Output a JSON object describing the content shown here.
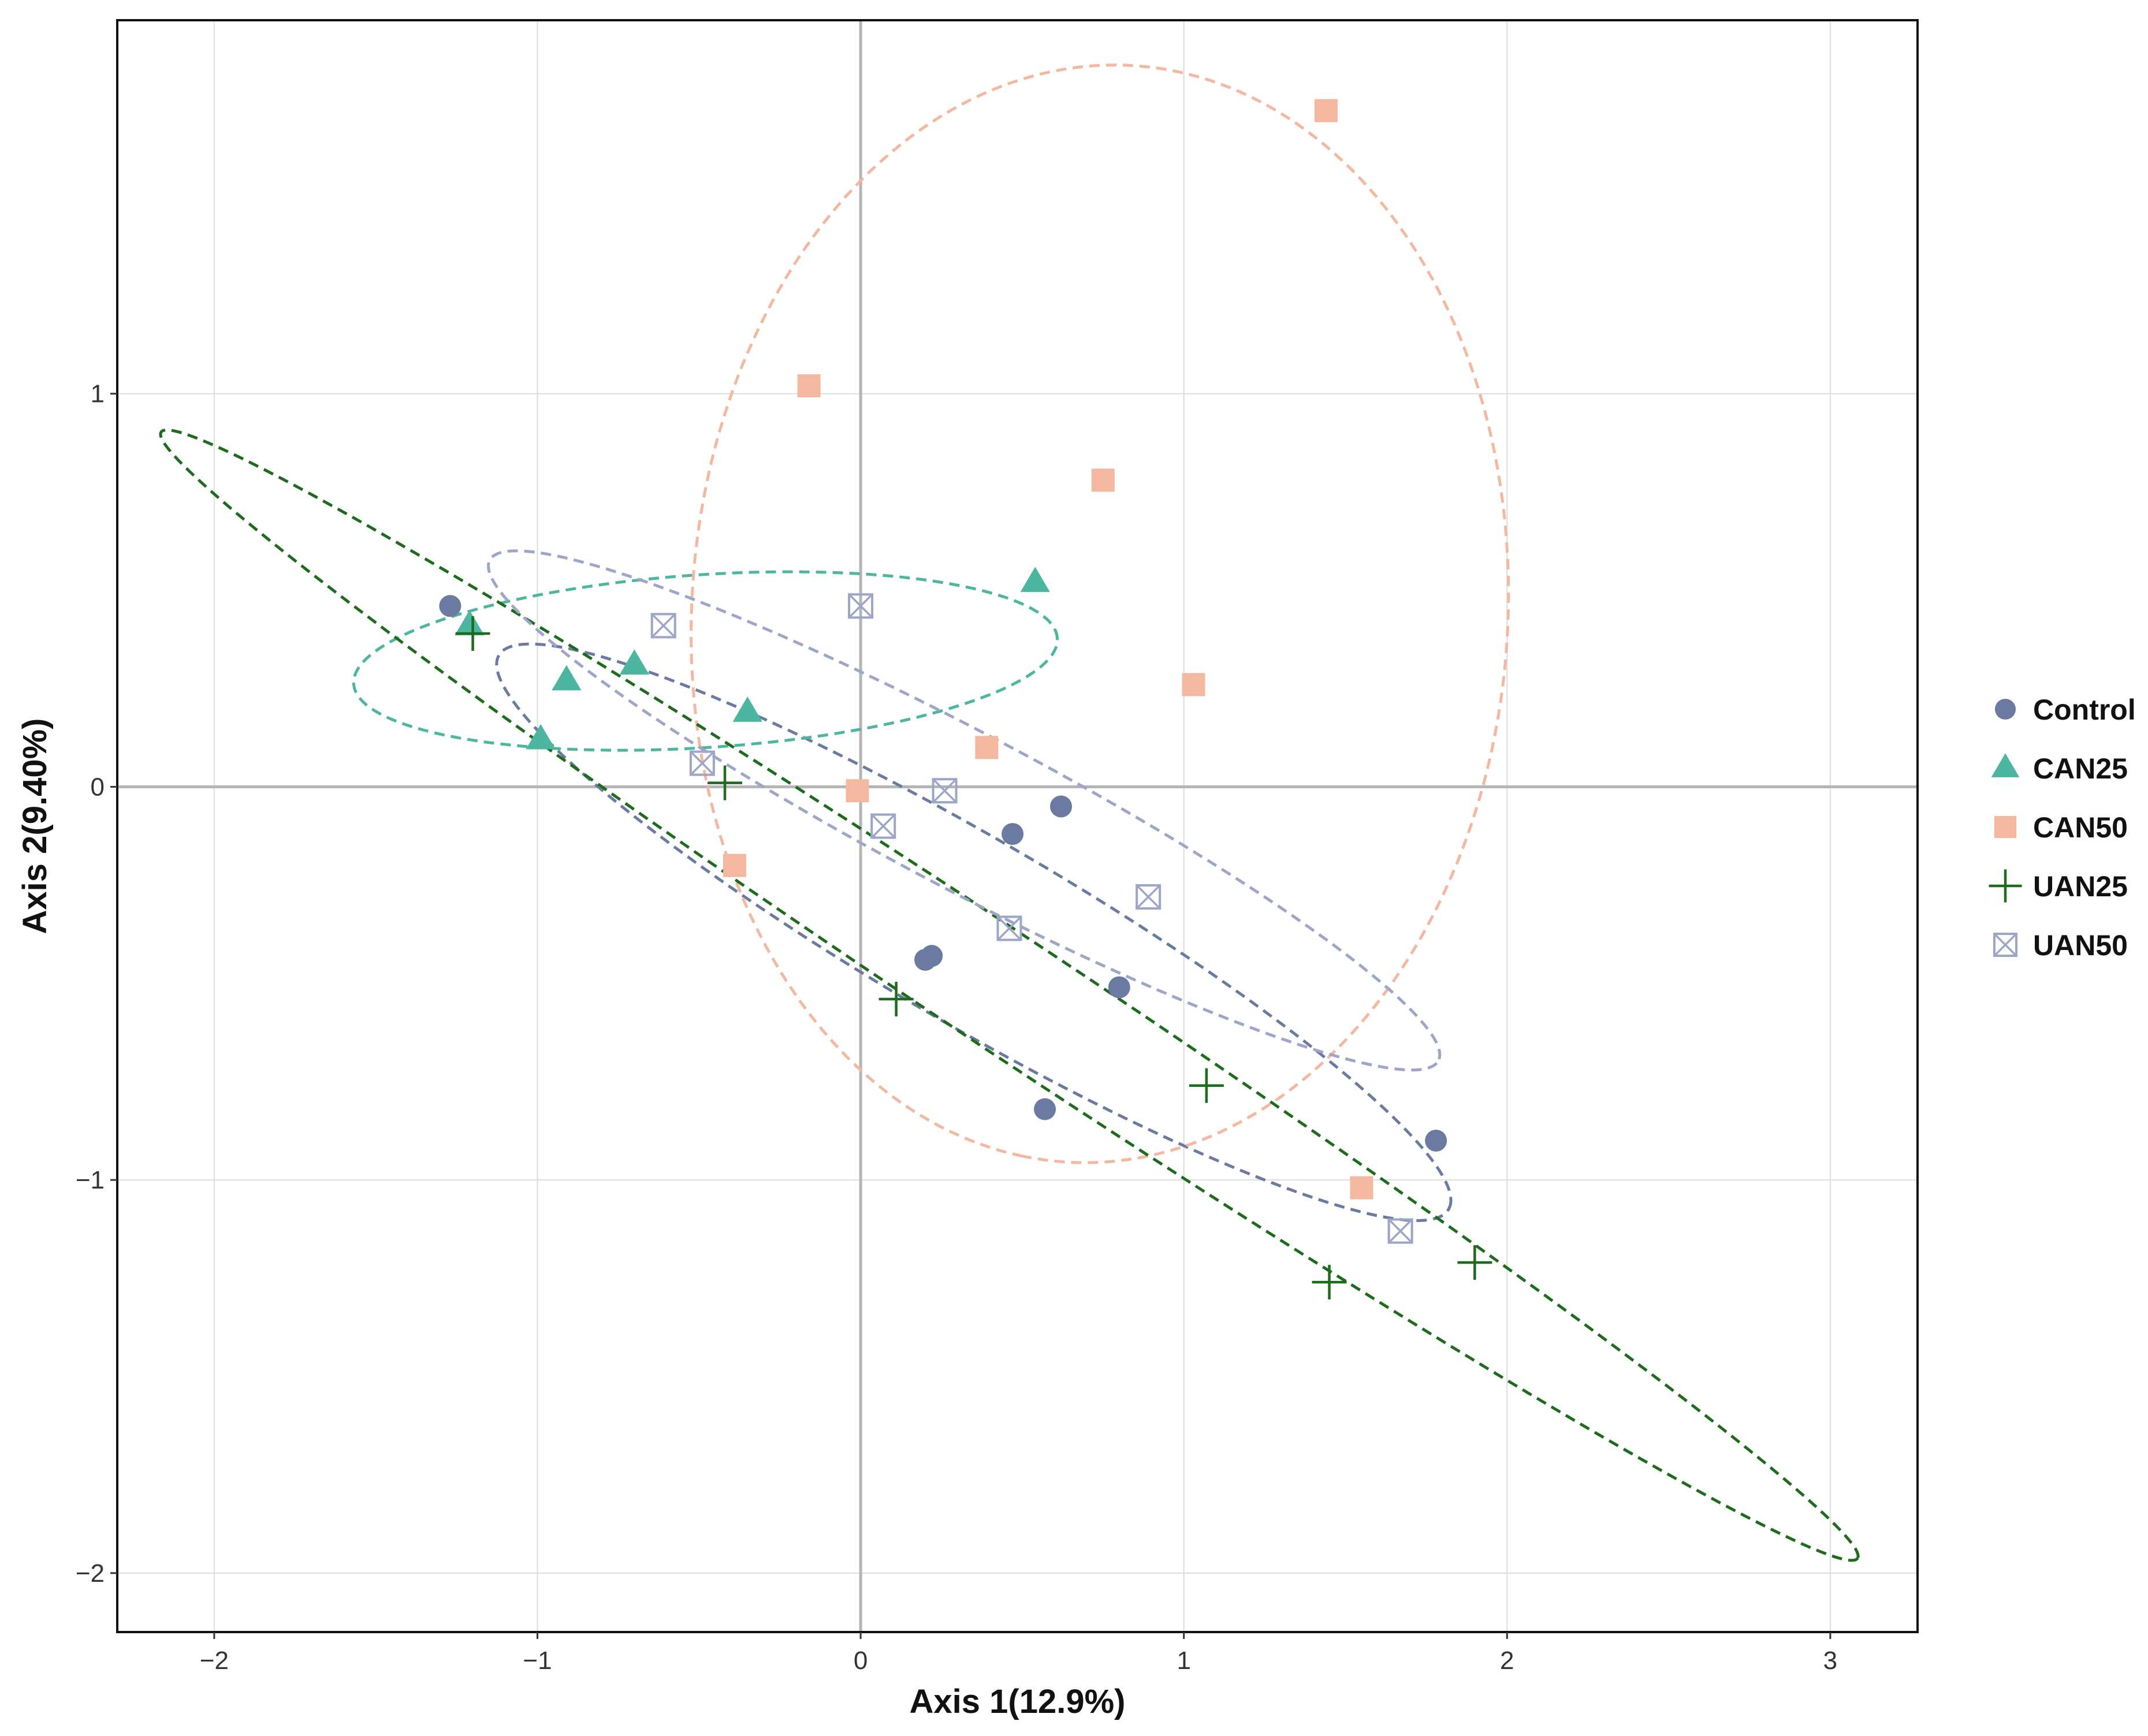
{
  "chart_data": {
    "type": "scatter",
    "title": "",
    "xlabel": "Axis 1(12.9%)",
    "ylabel": "Axis 2(9.40%)",
    "xlim": [
      -2.3,
      3.27
    ],
    "ylim": [
      -2.15,
      1.95
    ],
    "xticks": [
      -2,
      -1,
      0,
      1,
      2,
      3
    ],
    "yticks": [
      -2,
      -1,
      0,
      1
    ],
    "xtick_labels": [
      "−2",
      "−1",
      "0",
      "1",
      "2",
      "3"
    ],
    "ytick_labels": [
      "−2",
      "−1",
      "0",
      "1"
    ],
    "grid": true,
    "zero_lines": true,
    "legend_position": "right",
    "series": [
      {
        "name": "Control",
        "marker": "circle",
        "color": "#6B7AA1",
        "points": [
          [
            -1.27,
            0.46
          ],
          [
            0.47,
            -0.12
          ],
          [
            0.62,
            -0.05
          ],
          [
            0.2,
            -0.44
          ],
          [
            0.22,
            -0.43
          ],
          [
            0.8,
            -0.51
          ],
          [
            0.57,
            -0.82
          ],
          [
            1.78,
            -0.9
          ]
        ],
        "ellipse": {
          "cx": 0.35,
          "cy": -0.37,
          "rx": 1.63,
          "ry": 0.245,
          "angle": -25.4,
          "color": "#6B7AA1"
        }
      },
      {
        "name": "CAN25",
        "marker": "triangle",
        "color": "#4DB6A0",
        "points": [
          [
            -1.21,
            0.41
          ],
          [
            -0.91,
            0.27
          ],
          [
            -0.7,
            0.31
          ],
          [
            -0.35,
            0.19
          ],
          [
            -0.99,
            0.12
          ],
          [
            0.54,
            0.52
          ]
        ],
        "ellipse": {
          "cx": -0.48,
          "cy": 0.32,
          "rx": 1.09,
          "ry": 0.22,
          "angle": 3,
          "color": "#4DB6A0"
        }
      },
      {
        "name": "CAN50",
        "marker": "square",
        "color": "#F4B8A0",
        "points": [
          [
            1.44,
            1.72
          ],
          [
            -0.16,
            1.02
          ],
          [
            0.75,
            0.78
          ],
          [
            1.03,
            0.26
          ],
          [
            0.39,
            0.1
          ],
          [
            -0.01,
            -0.01
          ],
          [
            -0.39,
            -0.2
          ],
          [
            1.55,
            -1.02
          ]
        ],
        "ellipse": {
          "cx": 0.74,
          "cy": 0.44,
          "rx": 1.4,
          "ry": 1.26,
          "angle": -100,
          "color": "#F4B8A0"
        }
      },
      {
        "name": "UAN25",
        "marker": "plus",
        "color": "#1E6B1E",
        "points": [
          [
            -1.2,
            0.39
          ],
          [
            -0.42,
            0.01
          ],
          [
            0.11,
            -0.54
          ],
          [
            1.07,
            -0.76
          ],
          [
            1.45,
            -1.26
          ],
          [
            1.9,
            -1.21
          ]
        ],
        "ellipse": {
          "cx": 0.46,
          "cy": -0.53,
          "rx": 2.99,
          "ry": 0.155,
          "angle": -28.6,
          "color": "#1E6B1E"
        }
      },
      {
        "name": "UAN50",
        "marker": "boxx",
        "color": "#9DA6C8",
        "points": [
          [
            -0.61,
            0.41
          ],
          [
            0.0,
            0.46
          ],
          [
            -0.49,
            0.06
          ],
          [
            0.26,
            -0.01
          ],
          [
            0.07,
            -0.1
          ],
          [
            0.89,
            -0.28
          ],
          [
            0.46,
            -0.36
          ],
          [
            1.67,
            -1.13
          ]
        ],
        "ellipse": {
          "cx": 0.32,
          "cy": -0.06,
          "rx": 1.6,
          "ry": 0.205,
          "angle": -23.3,
          "color": "#9DA6C8"
        }
      }
    ]
  }
}
